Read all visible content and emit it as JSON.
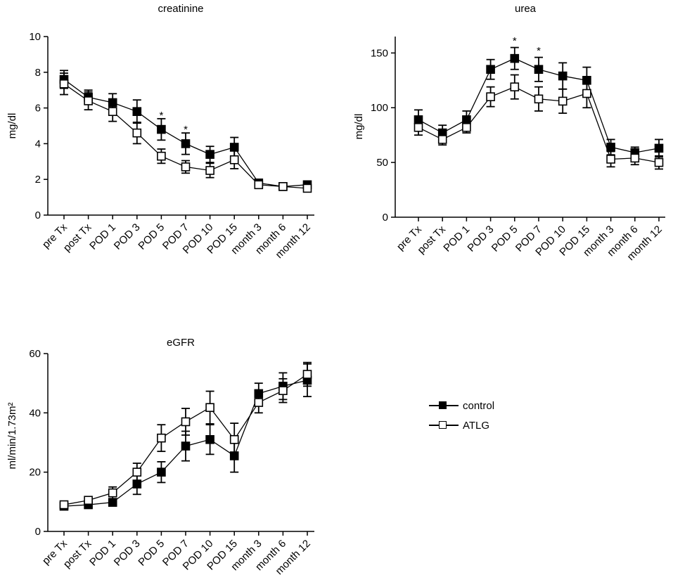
{
  "chart_data": [
    {
      "type": "line",
      "title": "creatinine",
      "ylabel": "mg/dl",
      "xlabel": "",
      "ylim": [
        0,
        10
      ],
      "yticks": [
        0,
        2,
        4,
        6,
        8,
        10
      ],
      "categories": [
        "pre Tx",
        "post Tx",
        "POD 1",
        "POD 3",
        "POD 5",
        "POD 7",
        "POD 10",
        "POD 15",
        "month 3",
        "month 6",
        "month 12"
      ],
      "series": [
        {
          "name": "control",
          "marker": "filled",
          "values": [
            7.6,
            6.6,
            6.3,
            5.8,
            4.8,
            4.0,
            3.4,
            3.8,
            1.8,
            1.6,
            1.7
          ],
          "errors": [
            0.5,
            0.4,
            0.5,
            0.65,
            0.6,
            0.6,
            0.45,
            0.55,
            0.2,
            0.15,
            0.2
          ]
        },
        {
          "name": "ATLG",
          "marker": "open",
          "values": [
            7.35,
            6.4,
            5.8,
            4.6,
            3.3,
            2.7,
            2.5,
            3.1,
            1.7,
            1.6,
            1.5
          ],
          "errors": [
            0.6,
            0.5,
            0.55,
            0.6,
            0.4,
            0.35,
            0.4,
            0.5,
            0.2,
            0.15,
            0.2
          ]
        }
      ],
      "annotations": [
        {
          "category": "POD 5",
          "value": 5.6,
          "text": "*"
        },
        {
          "category": "POD 7",
          "value": 4.8,
          "text": "*"
        }
      ]
    },
    {
      "type": "line",
      "title": "urea",
      "ylabel": "mg/dl",
      "xlabel": "",
      "ylim": [
        0,
        165
      ],
      "yticks": [
        0,
        50,
        100,
        150
      ],
      "categories": [
        "pre Tx",
        "post Tx",
        "POD 1",
        "POD 3",
        "POD 5",
        "POD 7",
        "POD 10",
        "POD 15",
        "month 3",
        "month 6",
        "month 12"
      ],
      "series": [
        {
          "name": "control",
          "marker": "filled",
          "values": [
            89,
            77,
            89,
            135,
            145,
            135,
            129,
            125,
            64,
            59,
            63
          ],
          "errors": [
            9,
            7,
            8,
            9,
            10,
            11,
            12,
            12,
            7,
            5,
            8
          ]
        },
        {
          "name": "ATLG",
          "marker": "open",
          "values": [
            82,
            71,
            82,
            110,
            119,
            108,
            106,
            113,
            53,
            54,
            50
          ],
          "errors": [
            7,
            5,
            5,
            9,
            11,
            11,
            11,
            13,
            7,
            6,
            6
          ]
        }
      ],
      "annotations": [
        {
          "category": "POD 5",
          "value": 161,
          "text": "*"
        },
        {
          "category": "POD 7",
          "value": 152,
          "text": "*"
        }
      ]
    },
    {
      "type": "line",
      "title": "eGFR",
      "ylabel": "ml/min/1.73m²",
      "xlabel": "",
      "ylim": [
        0,
        60
      ],
      "yticks": [
        0,
        20,
        40,
        60
      ],
      "categories": [
        "pre Tx",
        "post Tx",
        "POD 1",
        "POD 3",
        "POD 5",
        "POD 7",
        "POD 10",
        "POD 15",
        "month 3",
        "month 6",
        "month 12"
      ],
      "series": [
        {
          "name": "control",
          "marker": "filled",
          "values": [
            8.5,
            9.0,
            9.8,
            16.0,
            20.0,
            28.8,
            31.0,
            25.5,
            46.5,
            49.0,
            51.0
          ],
          "errors": [
            0.8,
            0.8,
            1.0,
            3.5,
            3.5,
            5.0,
            5.0,
            5.5,
            3.5,
            4.5,
            5.5
          ]
        },
        {
          "name": "ATLG",
          "marker": "open",
          "values": [
            9.0,
            10.5,
            13.0,
            20.0,
            31.5,
            37.0,
            41.8,
            31.0,
            43.5,
            47.5,
            53.0
          ],
          "errors": [
            0.8,
            0.8,
            2.0,
            3.0,
            4.5,
            4.5,
            5.5,
            5.5,
            3.5,
            4.0,
            4.0
          ]
        }
      ],
      "annotations": []
    }
  ],
  "legend": {
    "items": [
      {
        "label": "control",
        "marker": "filled"
      },
      {
        "label": "ATLG",
        "marker": "open"
      }
    ]
  }
}
